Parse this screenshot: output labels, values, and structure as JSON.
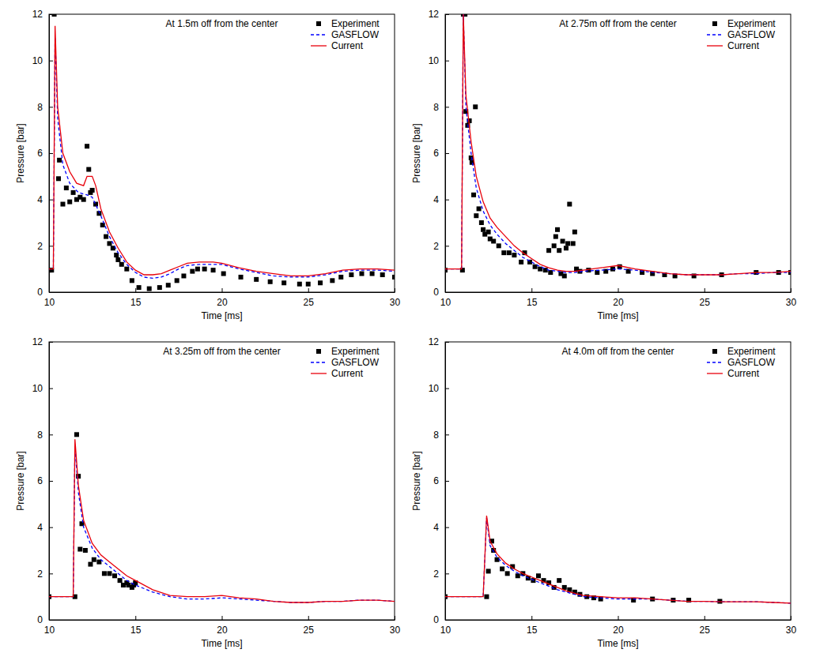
{
  "chart_data": [
    {
      "type": "line",
      "title": "At 1.5m off from the center",
      "x_label": "Time [ms]",
      "y_label": "Pressure [bar]",
      "xlim": [
        10,
        30
      ],
      "ylim": [
        0,
        12
      ],
      "xticks": [
        10,
        15,
        20,
        25,
        30
      ],
      "yticks": [
        0,
        2,
        4,
        6,
        8,
        10,
        12
      ],
      "grid": false,
      "legend": "upper right",
      "series": [
        {
          "name": "Experiment",
          "type": "scatter",
          "marker": "square",
          "color": "#000000",
          "x": [
            10,
            10.15,
            10.3,
            10.55,
            10.6,
            10.8,
            11.0,
            11.2,
            11.4,
            11.6,
            11.8,
            12.0,
            12.2,
            12.3,
            12.4,
            12.5,
            12.7,
            12.9,
            13.1,
            13.3,
            13.5,
            13.7,
            13.9,
            14.0,
            14.2,
            14.5,
            14.8,
            15.2,
            15.8,
            16.4,
            16.9,
            17.4,
            17.8,
            18.3,
            18.6,
            19.0,
            19.5,
            20.1,
            21.1,
            22.0,
            22.8,
            23.6,
            24.5,
            25.0,
            25.7,
            26.4,
            26.9,
            27.5,
            28.1,
            28.7,
            29.3,
            30
          ],
          "values": [
            0.95,
            0.95,
            12,
            4.9,
            5.7,
            3.8,
            4.5,
            3.9,
            4.3,
            4.0,
            4.1,
            4.0,
            6.3,
            5.3,
            4.3,
            4.4,
            3.8,
            3.4,
            2.9,
            2.4,
            2.1,
            1.9,
            1.6,
            1.4,
            1.2,
            1.0,
            0.5,
            0.2,
            0.15,
            0.2,
            0.3,
            0.5,
            0.7,
            0.9,
            1.0,
            1.0,
            0.95,
            0.8,
            0.65,
            0.55,
            0.45,
            0.4,
            0.35,
            0.35,
            0.4,
            0.5,
            0.65,
            0.75,
            0.8,
            0.8,
            0.75,
            0.65
          ]
        },
        {
          "name": "GASFLOW",
          "type": "line",
          "line_style": "dashed",
          "color": "#0000ff",
          "x": [
            10,
            10.25,
            10.35,
            10.5,
            10.8,
            11.2,
            11.7,
            12.2,
            12.5,
            13,
            13.5,
            14,
            14.5,
            15,
            15.5,
            16,
            16.5,
            17,
            17.5,
            18,
            18.7,
            19.5,
            20,
            21,
            22,
            23,
            24,
            25,
            26,
            27,
            28,
            29,
            30
          ],
          "values": [
            1,
            1,
            11.0,
            7.5,
            5.5,
            4.7,
            4.3,
            4.2,
            4.1,
            3.3,
            2.4,
            1.7,
            1.2,
            0.85,
            0.65,
            0.6,
            0.65,
            0.8,
            1.0,
            1.15,
            1.2,
            1.2,
            1.2,
            1.0,
            0.85,
            0.7,
            0.65,
            0.65,
            0.75,
            0.9,
            0.95,
            0.95,
            0.9
          ]
        },
        {
          "name": "Current",
          "type": "line",
          "line_style": "solid",
          "color": "#e8000b",
          "x": [
            10,
            10.25,
            10.35,
            10.5,
            10.8,
            11.2,
            11.6,
            12,
            12.2,
            12.5,
            12.7,
            13,
            13.5,
            14,
            14.5,
            15,
            15.5,
            16,
            16.5,
            17,
            17.5,
            18,
            18.7,
            19.5,
            20,
            21,
            22,
            23,
            24,
            25,
            26,
            27,
            28,
            29,
            30
          ],
          "values": [
            1,
            1,
            11.5,
            8,
            6,
            5.2,
            4.7,
            4.6,
            5.0,
            5.0,
            4.6,
            3.6,
            2.6,
            1.9,
            1.3,
            0.95,
            0.75,
            0.75,
            0.8,
            0.95,
            1.1,
            1.25,
            1.3,
            1.3,
            1.25,
            1.05,
            0.9,
            0.8,
            0.7,
            0.7,
            0.8,
            0.95,
            1.0,
            1.0,
            0.95
          ]
        }
      ]
    },
    {
      "type": "line",
      "title": "At 2.75m off from the center",
      "x_label": "Time [ms]",
      "y_label": "Pressure [bar]",
      "xlim": [
        10,
        30
      ],
      "ylim": [
        0,
        12
      ],
      "xticks": [
        10,
        15,
        20,
        25,
        30
      ],
      "yticks": [
        0,
        2,
        4,
        6,
        8,
        10,
        12
      ],
      "grid": false,
      "legend": "upper right",
      "series": [
        {
          "name": "Experiment",
          "type": "scatter",
          "marker": "square",
          "color": "#000000",
          "x": [
            10,
            11.0,
            11.05,
            11.15,
            11.2,
            11.3,
            11.4,
            11.5,
            11.55,
            11.65,
            11.75,
            11.8,
            11.95,
            12.1,
            12.2,
            12.3,
            12.5,
            12.6,
            12.8,
            13.1,
            13.4,
            13.7,
            14.0,
            14.4,
            14.6,
            14.9,
            15.2,
            15.5,
            15.8,
            16.0,
            16.1,
            16.3,
            16.4,
            16.5,
            16.6,
            16.7,
            16.8,
            16.9,
            17.0,
            17.1,
            17.2,
            17.4,
            17.5,
            17.6,
            17.8,
            18.3,
            18.8,
            19.3,
            19.7,
            20.1,
            20.6,
            21.4,
            22.0,
            22.7,
            23.3,
            24.4,
            26.0,
            28.0,
            29.3,
            30
          ],
          "values": [
            0.95,
            0.95,
            12,
            12,
            7.8,
            7.2,
            7.4,
            5.8,
            5.6,
            4.2,
            8.0,
            3.3,
            3.6,
            3.0,
            2.7,
            2.5,
            2.6,
            2.3,
            2.2,
            2.0,
            1.7,
            1.7,
            1.6,
            1.3,
            1.7,
            1.3,
            1.1,
            1.0,
            0.95,
            1.8,
            0.85,
            2.0,
            2.4,
            2.7,
            1.8,
            0.8,
            2.2,
            0.7,
            1.9,
            2.1,
            3.8,
            2.1,
            2.6,
            1.0,
            0.9,
            0.95,
            0.85,
            0.9,
            1.0,
            1.1,
            0.9,
            0.85,
            0.8,
            0.75,
            0.7,
            0.7,
            0.75,
            0.85,
            0.85,
            0.85
          ]
        },
        {
          "name": "GASFLOW",
          "type": "line",
          "line_style": "dashed",
          "color": "#0000ff",
          "x": [
            10,
            10.95,
            11.05,
            11.2,
            11.5,
            11.8,
            12.2,
            12.6,
            13,
            13.5,
            14,
            14.5,
            15,
            15.5,
            16,
            16.5,
            17,
            17.5,
            18,
            19,
            20,
            21,
            22,
            23,
            24,
            25,
            26,
            27,
            28,
            29,
            30
          ],
          "values": [
            1,
            1,
            12,
            8,
            6,
            4.5,
            3.5,
            2.9,
            2.5,
            2.1,
            1.8,
            1.5,
            1.3,
            1.1,
            0.95,
            0.9,
            0.85,
            0.85,
            0.9,
            0.95,
            1.0,
            0.95,
            0.85,
            0.8,
            0.75,
            0.75,
            0.75,
            0.8,
            0.8,
            0.85,
            0.85
          ]
        },
        {
          "name": "Current",
          "type": "line",
          "line_style": "solid",
          "color": "#e8000b",
          "x": [
            10,
            10.95,
            11.05,
            11.2,
            11.5,
            11.8,
            12.2,
            12.6,
            13,
            13.5,
            14,
            14.5,
            15,
            15.5,
            16,
            16.5,
            17,
            17.5,
            18,
            19,
            20,
            21,
            22,
            23,
            24,
            25,
            26,
            27,
            28,
            29,
            30
          ],
          "values": [
            1,
            1,
            12,
            8.5,
            6.5,
            5.0,
            3.9,
            3.2,
            2.8,
            2.4,
            2.0,
            1.7,
            1.45,
            1.2,
            1.05,
            0.95,
            0.9,
            0.9,
            0.95,
            1.05,
            1.15,
            1.0,
            0.9,
            0.8,
            0.75,
            0.75,
            0.75,
            0.8,
            0.85,
            0.85,
            0.9
          ]
        }
      ]
    },
    {
      "type": "line",
      "title": "At 3.25m off from the center",
      "x_label": "Time [ms]",
      "y_label": "Pressure [bar]",
      "xlim": [
        10,
        30
      ],
      "ylim": [
        0,
        12
      ],
      "xticks": [
        10,
        15,
        20,
        25,
        30
      ],
      "yticks": [
        0,
        2,
        4,
        6,
        8,
        10,
        12
      ],
      "grid": false,
      "legend": "upper right",
      "series": [
        {
          "name": "Experiment",
          "type": "scatter",
          "marker": "square",
          "color": "#000000",
          "x": [
            10,
            11.5,
            11.6,
            11.7,
            11.8,
            11.9,
            12.1,
            12.4,
            12.6,
            12.9,
            13.2,
            13.5,
            13.8,
            14.1,
            14.3,
            14.5,
            14.6,
            14.8,
            14.9,
            15.0
          ],
          "values": [
            1.0,
            1.0,
            8.0,
            6.2,
            3.05,
            4.15,
            3.0,
            2.4,
            2.6,
            2.5,
            2.0,
            2.0,
            1.9,
            1.7,
            1.5,
            1.6,
            1.5,
            1.4,
            1.5,
            1.6
          ]
        },
        {
          "name": "GASFLOW",
          "type": "line",
          "line_style": "dashed",
          "color": "#0000ff",
          "x": [
            10,
            11.4,
            11.5,
            11.7,
            12,
            12.5,
            13,
            13.5,
            14,
            14.5,
            15,
            16,
            17,
            18,
            19,
            20,
            21,
            22,
            23,
            24,
            25,
            26,
            27,
            28,
            29,
            30
          ],
          "values": [
            1,
            1,
            7.5,
            5.5,
            4.0,
            3.1,
            2.6,
            2.3,
            2.0,
            1.7,
            1.5,
            1.2,
            1.0,
            0.9,
            0.9,
            0.95,
            0.9,
            0.85,
            0.8,
            0.75,
            0.75,
            0.8,
            0.8,
            0.85,
            0.85,
            0.8
          ]
        },
        {
          "name": "Current",
          "type": "line",
          "line_style": "solid",
          "color": "#e8000b",
          "x": [
            10,
            11.4,
            11.5,
            11.7,
            12,
            12.5,
            13,
            13.5,
            14,
            14.5,
            15,
            16,
            17,
            18,
            19,
            20,
            21,
            22,
            23,
            24,
            25,
            26,
            27,
            28,
            29,
            30
          ],
          "values": [
            1,
            1,
            7.8,
            5.8,
            4.3,
            3.3,
            2.8,
            2.5,
            2.2,
            1.9,
            1.7,
            1.3,
            1.05,
            1.0,
            1.0,
            1.05,
            0.95,
            0.9,
            0.8,
            0.75,
            0.75,
            0.8,
            0.8,
            0.85,
            0.85,
            0.8
          ]
        }
      ]
    },
    {
      "type": "line",
      "title": "At 4.0m off from the center",
      "x_label": "Time [ms]",
      "y_label": "Pressure [bar]",
      "xlim": [
        10,
        30
      ],
      "ylim": [
        0,
        12
      ],
      "xticks": [
        10,
        15,
        20,
        25,
        30
      ],
      "yticks": [
        0,
        2,
        4,
        6,
        8,
        10,
        12
      ],
      "grid": false,
      "legend": "upper right",
      "series": [
        {
          "name": "Experiment",
          "type": "scatter",
          "marker": "square",
          "color": "#000000",
          "x": [
            10,
            12.4,
            12.5,
            12.7,
            12.8,
            13,
            13.3,
            13.6,
            13.9,
            14.2,
            14.5,
            14.8,
            15.1,
            15.4,
            15.7,
            16,
            16.3,
            16.6,
            16.9,
            17.2,
            17.5,
            17.8,
            18.2,
            18.6,
            19,
            20.9,
            22,
            23.2,
            24.1,
            25.9
          ],
          "values": [
            1.0,
            1.0,
            2.1,
            3.4,
            3.0,
            2.6,
            2.2,
            2.0,
            2.3,
            1.9,
            2.0,
            1.8,
            1.7,
            1.9,
            1.7,
            1.6,
            1.4,
            1.7,
            1.4,
            1.3,
            1.2,
            1.1,
            1.0,
            0.95,
            0.9,
            0.85,
            0.9,
            0.85,
            0.85,
            0.8
          ]
        },
        {
          "name": "GASFLOW",
          "type": "line",
          "line_style": "dashed",
          "color": "#0000ff",
          "x": [
            10,
            12.2,
            12.4,
            12.6,
            13,
            13.5,
            14,
            14.5,
            15,
            15.5,
            16,
            16.5,
            17,
            17.5,
            18,
            19,
            20,
            21,
            22,
            23,
            24,
            25,
            26,
            27,
            28,
            29,
            30
          ],
          "values": [
            1,
            1,
            4.4,
            3.2,
            2.7,
            2.35,
            2.1,
            1.9,
            1.75,
            1.6,
            1.45,
            1.3,
            1.2,
            1.1,
            1.0,
            0.95,
            0.9,
            0.9,
            0.9,
            0.85,
            0.8,
            0.8,
            0.78,
            0.78,
            0.78,
            0.75,
            0.72
          ]
        },
        {
          "name": "Current",
          "type": "line",
          "line_style": "solid",
          "color": "#e8000b",
          "x": [
            10,
            12.2,
            12.4,
            12.6,
            13,
            13.5,
            14,
            14.5,
            15,
            15.5,
            16,
            16.5,
            17,
            17.5,
            18,
            19,
            20,
            21,
            22,
            23,
            24,
            25,
            26,
            27,
            28,
            29,
            30
          ],
          "values": [
            1,
            1,
            4.5,
            3.4,
            2.85,
            2.45,
            2.2,
            2.0,
            1.85,
            1.7,
            1.55,
            1.4,
            1.25,
            1.15,
            1.05,
            1.0,
            0.95,
            0.95,
            0.9,
            0.85,
            0.8,
            0.8,
            0.78,
            0.78,
            0.78,
            0.75,
            0.72
          ]
        }
      ]
    }
  ]
}
